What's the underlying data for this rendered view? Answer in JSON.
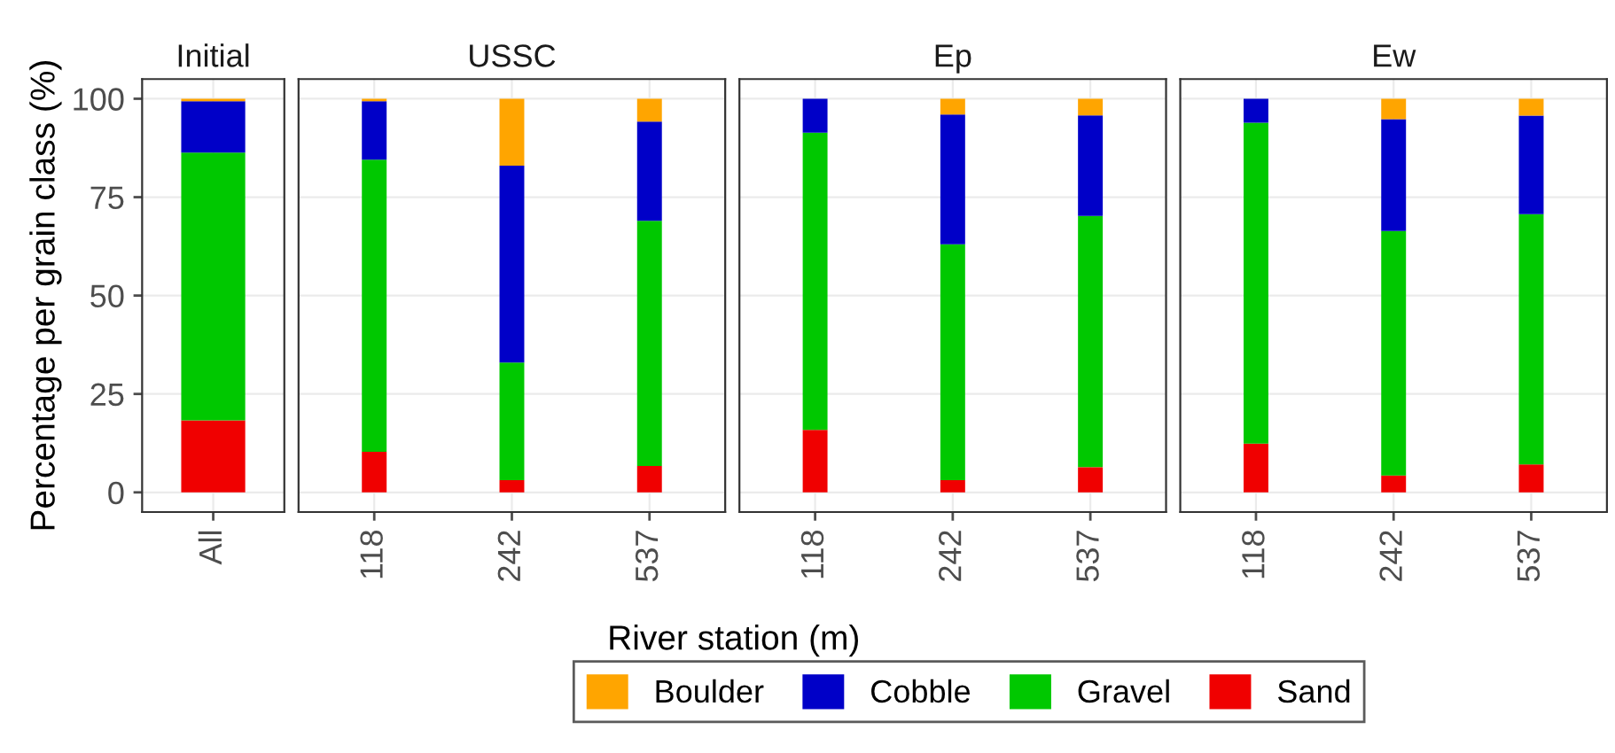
{
  "chart_data": [
    {
      "type": "bar",
      "stacked": true,
      "title": "Initial",
      "ylabel": "Percentage per grain class (%)",
      "categories": [
        "All"
      ],
      "ylim": [
        -5,
        105
      ],
      "yticks": [
        0,
        25,
        50,
        75,
        100
      ],
      "grid": true,
      "legend": "bottom",
      "series": [
        {
          "name": "Sand",
          "color": "#f00000",
          "values": [
            18.3
          ]
        },
        {
          "name": "Gravel",
          "color": "#00c800",
          "values": [
            68.0
          ]
        },
        {
          "name": "Cobble",
          "color": "#0000c8",
          "values": [
            13.1
          ]
        },
        {
          "name": "Boulder",
          "color": "#ffa500",
          "values": [
            0.6
          ]
        }
      ]
    },
    {
      "type": "bar",
      "stacked": true,
      "title": "USSC",
      "xlabel": "River station (m)",
      "categories": [
        "118",
        "242",
        "537"
      ],
      "ylim": [
        -5,
        105
      ],
      "yticks": [
        0,
        25,
        50,
        75,
        100
      ],
      "tick_labels": "x",
      "grid": true,
      "series": [
        {
          "color": "#f00000",
          "values": [
            10.3,
            3.1,
            6.7
          ]
        },
        {
          "color": "#00c800",
          "values": [
            74.2,
            29.9,
            62.3
          ]
        },
        {
          "color": "#0000c8",
          "values": [
            14.9,
            50.0,
            25.2
          ]
        },
        {
          "color": "#ffa500",
          "values": [
            0.6,
            17.0,
            5.8
          ]
        }
      ]
    },
    {
      "type": "bar",
      "stacked": true,
      "title": "Ep",
      "categories": [
        "118",
        "242",
        "537"
      ],
      "ylim": [
        -5,
        105
      ],
      "yticks": [
        0,
        25,
        50,
        75,
        100
      ],
      "tick_labels": "x",
      "grid": true,
      "series": [
        {
          "color": "#f00000",
          "values": [
            15.9,
            3.1,
            6.4
          ]
        },
        {
          "color": "#00c800",
          "values": [
            75.5,
            59.9,
            63.8
          ]
        },
        {
          "color": "#0000c8",
          "values": [
            8.6,
            33.0,
            25.6
          ]
        },
        {
          "color": "#ffa500",
          "values": [
            0,
            4.0,
            4.2
          ]
        }
      ]
    },
    {
      "type": "bar",
      "stacked": true,
      "title": "Ew",
      "categories": [
        "118",
        "242",
        "537"
      ],
      "ylim": [
        -5,
        105
      ],
      "yticks": [
        0,
        25,
        50,
        75,
        100
      ],
      "tick_labels": "x",
      "grid": true,
      "series": [
        {
          "color": "#f00000",
          "values": [
            12.4,
            4.3,
            7.1
          ]
        },
        {
          "color": "#00c800",
          "values": [
            81.5,
            62.1,
            63.6
          ]
        },
        {
          "color": "#0000c8",
          "values": [
            6.1,
            28.4,
            25.0
          ]
        },
        {
          "color": "#ffa500",
          "values": [
            0,
            5.2,
            4.3
          ]
        }
      ]
    }
  ]
}
